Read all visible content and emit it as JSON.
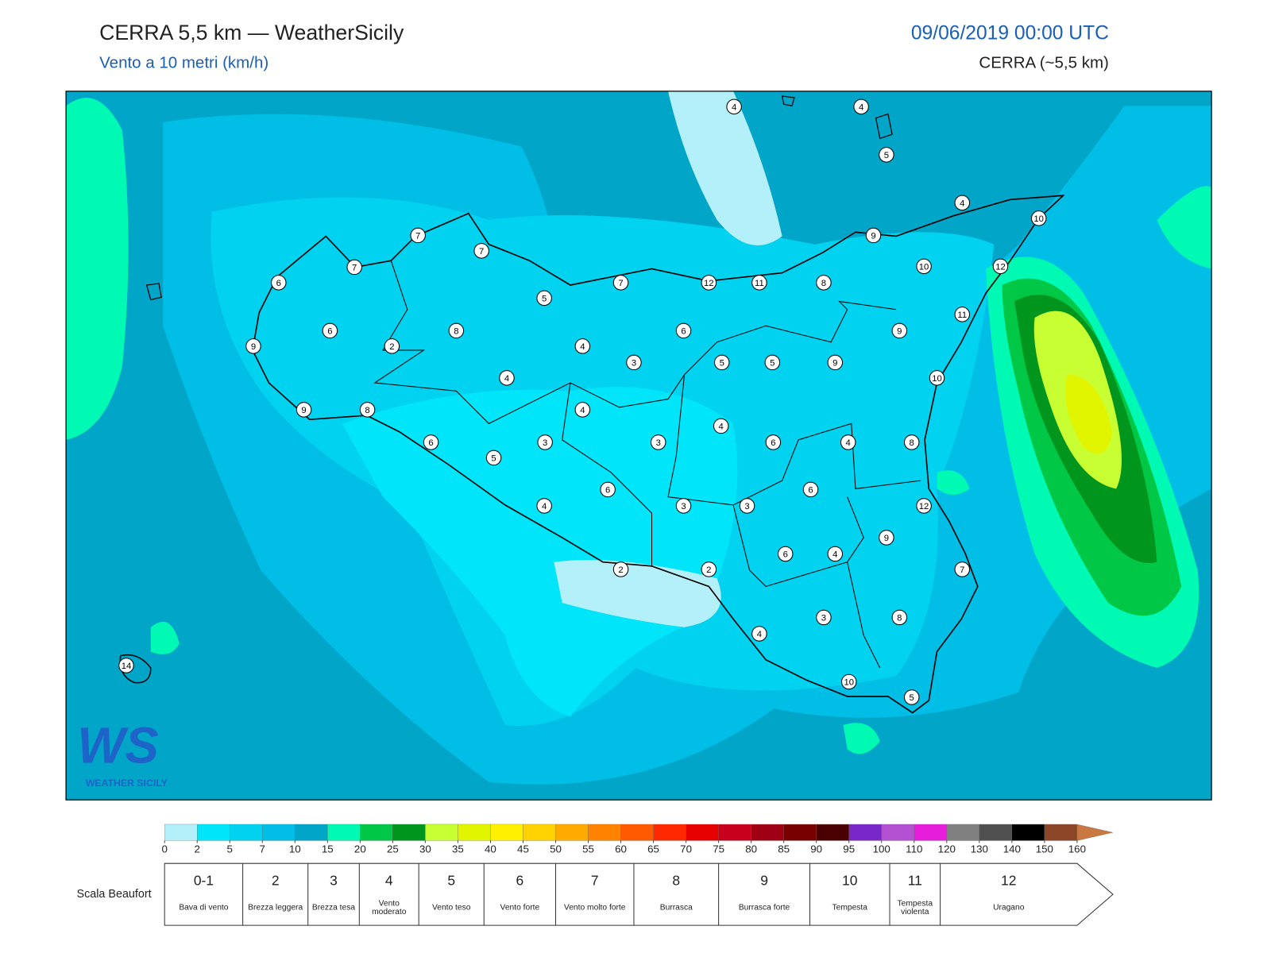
{
  "header": {
    "title": "CERRA 5,5 km — WeatherSicily",
    "subtitle": "Vento a 10 metri (km/h)",
    "datetime": "09/06/2019 00:00 UTC",
    "model": "CERRA (~5,5 km)"
  },
  "map": {
    "stations": [
      4,
      4,
      5,
      4,
      10,
      7,
      7,
      9,
      7,
      10,
      12,
      6,
      7,
      12,
      11,
      8,
      5,
      11,
      6,
      8,
      6,
      9,
      9,
      2,
      4,
      3,
      5,
      5,
      9,
      10,
      4,
      9,
      8,
      4,
      4,
      6,
      3,
      3,
      6,
      4,
      8,
      5,
      6,
      6,
      4,
      3,
      3,
      12,
      9,
      6,
      4,
      2,
      2,
      7,
      3,
      8,
      4,
      14,
      10,
      5
    ]
  },
  "logo": {
    "mark": "WS",
    "name": "WEATHER SICILY"
  },
  "colorbar": {
    "ticks": [
      0,
      2,
      5,
      7,
      10,
      15,
      20,
      25,
      30,
      35,
      40,
      45,
      50,
      55,
      60,
      65,
      70,
      75,
      80,
      85,
      90,
      95,
      100,
      110,
      120,
      130,
      140,
      150,
      160
    ],
    "colors": [
      "#b4f0fa",
      "#00e5fa",
      "#00d2f0",
      "#00bee6",
      "#00a5c8",
      "#00fab4",
      "#00c846",
      "#00961e",
      "#c8ff32",
      "#e1f500",
      "#fff000",
      "#ffd200",
      "#ffaa00",
      "#ff8200",
      "#ff5a00",
      "#ff2800",
      "#e60000",
      "#c8001e",
      "#a00014",
      "#780000",
      "#4a0000",
      "#7828c8",
      "#b450d2",
      "#e61edc",
      "#808080",
      "#505050",
      "#000000",
      "#8c4628",
      "#c87840"
    ]
  },
  "beaufort": {
    "title": "Scala Beaufort",
    "levels": [
      {
        "force": "0-1",
        "label": "Bava di vento"
      },
      {
        "force": 2,
        "label": "Brezza leggera"
      },
      {
        "force": 3,
        "label": "Brezza tesa"
      },
      {
        "force": 4,
        "label": "Vento moderato"
      },
      {
        "force": 5,
        "label": "Vento teso"
      },
      {
        "force": 6,
        "label": "Vento forte"
      },
      {
        "force": 7,
        "label": "Vento molto forte"
      },
      {
        "force": 8,
        "label": "Burrasca"
      },
      {
        "force": 9,
        "label": "Burrasca forte"
      },
      {
        "force": 10,
        "label": "Tempesta"
      },
      {
        "force": 11,
        "label": "Tempesta violenta"
      },
      {
        "force": 12,
        "label": "Uragano"
      }
    ]
  }
}
